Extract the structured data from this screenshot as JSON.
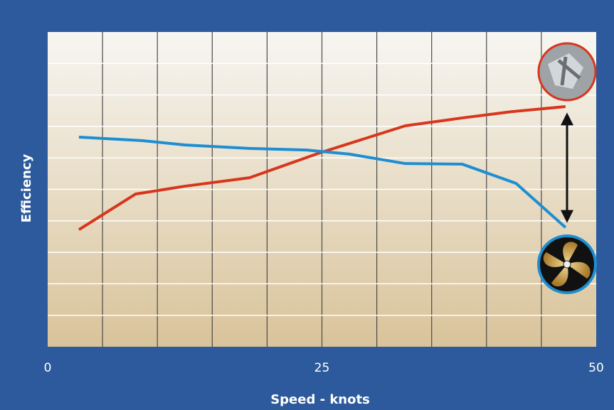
{
  "chart_data": {
    "type": "line",
    "x_label": "Speed - knots",
    "y_label": "Efficiency",
    "xlim": [
      0,
      50
    ],
    "xticks": [
      0,
      25,
      50
    ],
    "xgrid": [
      5,
      10,
      15,
      20,
      25,
      30,
      35,
      40,
      45
    ],
    "ylim": [
      0,
      10
    ],
    "ygrid": [
      1,
      2,
      3,
      4,
      5,
      6,
      7,
      8,
      9
    ],
    "grid": true,
    "series": [
      {
        "color": "#d8361c",
        "x": [
          2.85,
          8.0,
          12.5,
          18.4,
          24.8,
          32.6,
          37.8,
          42.3,
          47.2
        ],
        "values": [
          3.72,
          4.85,
          5.1,
          5.37,
          6.16,
          7.02,
          7.27,
          7.47,
          7.63
        ]
      },
      {
        "color": "#1d8ed2",
        "x": [
          2.85,
          8.6,
          12.5,
          18.4,
          23.6,
          27.5,
          32.6,
          37.8,
          42.7,
          47.2
        ],
        "values": [
          6.66,
          6.55,
          6.41,
          6.3,
          6.25,
          6.12,
          5.82,
          5.8,
          5.19,
          3.79
        ]
      }
    ]
  }
}
